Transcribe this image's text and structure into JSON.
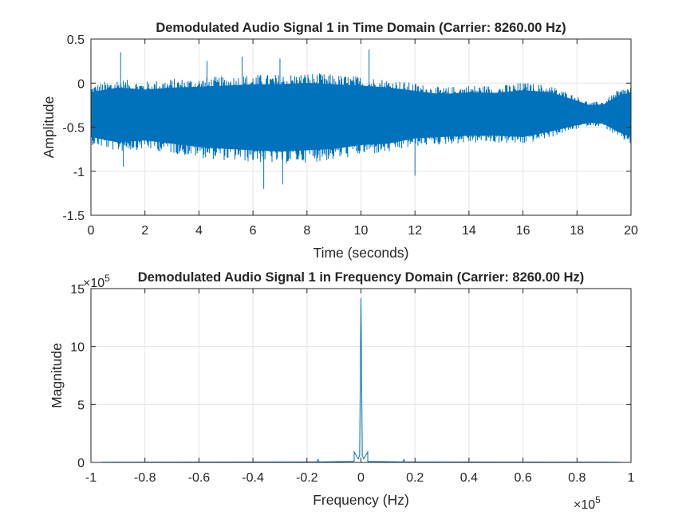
{
  "chart_data": [
    {
      "type": "line",
      "title": "Demodulated Audio Signal 1 in Time Domain (Carrier: 8260.00 Hz)",
      "xlabel": "Time (seconds)",
      "ylabel": "Amplitude",
      "xlim": [
        0,
        20
      ],
      "ylim": [
        -1.5,
        0.5
      ],
      "xticks": [
        0,
        2,
        4,
        6,
        8,
        10,
        12,
        14,
        16,
        18,
        20
      ],
      "yticks": [
        -1.5,
        -1,
        -0.5,
        0,
        0.5
      ],
      "xtick_labels": [
        "0",
        "2",
        "4",
        "6",
        "8",
        "10",
        "12",
        "14",
        "16",
        "18",
        "20"
      ],
      "ytick_labels": [
        "-1.5",
        "-1",
        "-0.5",
        "0",
        "0.5"
      ],
      "grid": true,
      "color": "#0072bd",
      "series": [
        {
          "center": -0.35,
          "envelope": {
            "t": [
              0,
              1,
              2,
              3,
              4,
              5,
              6,
              7,
              8,
              9,
              10,
              11,
              12,
              13,
              14,
              15,
              16,
              17,
              18,
              18.5,
              19,
              19.5,
              20
            ],
            "upper": [
              -0.02,
              0.05,
              0.02,
              0.05,
              0.06,
              0.08,
              0.1,
              0.1,
              0.12,
              0.1,
              0.08,
              0.05,
              0.0,
              -0.05,
              -0.02,
              -0.03,
              0.01,
              -0.02,
              -0.15,
              -0.22,
              -0.2,
              -0.08,
              -0.02
            ],
            "lower": [
              -0.7,
              -0.78,
              -0.75,
              -0.8,
              -0.85,
              -0.88,
              -0.9,
              -0.92,
              -0.9,
              -0.88,
              -0.82,
              -0.8,
              -0.72,
              -0.7,
              -0.68,
              -0.68,
              -0.7,
              -0.62,
              -0.52,
              -0.48,
              -0.5,
              -0.62,
              -0.7
            ]
          },
          "peaks": [
            {
              "t": 1.1,
              "y": 0.35
            },
            {
              "t": 1.2,
              "y": -0.95
            },
            {
              "t": 4.3,
              "y": 0.25
            },
            {
              "t": 5.6,
              "y": 0.3
            },
            {
              "t": 6.4,
              "y": -1.2
            },
            {
              "t": 7.0,
              "y": 0.28
            },
            {
              "t": 7.1,
              "y": -1.15
            },
            {
              "t": 10.3,
              "y": 0.38
            },
            {
              "t": 12.0,
              "y": -1.05
            }
          ]
        }
      ]
    },
    {
      "type": "line",
      "title": "Demodulated Audio Signal 1 in Frequency Domain (Carrier: 8260.00 Hz)",
      "xlabel": "Frequency (Hz)",
      "ylabel": "Magnitude",
      "xlim": [
        -1,
        1
      ],
      "ylim": [
        0,
        15
      ],
      "xticks": [
        -1,
        -0.8,
        -0.6,
        -0.4,
        -0.2,
        0,
        0.2,
        0.4,
        0.6,
        0.8,
        1
      ],
      "yticks": [
        0,
        5,
        10,
        15
      ],
      "xtick_labels": [
        "-1",
        "-0.8",
        "-0.6",
        "-0.4",
        "-0.2",
        "0",
        "0.2",
        "0.4",
        "0.6",
        "0.8",
        "1"
      ],
      "ytick_labels": [
        "0",
        "5",
        "10",
        "15"
      ],
      "x_exponent_label": "×10",
      "x_exponent": "5",
      "y_exponent_label": "×10",
      "y_exponent": "5",
      "grid": true,
      "color": "#0072bd",
      "series": [
        {
          "x": [
            -0.96,
            -0.2,
            -0.16,
            -0.16,
            -0.155,
            -0.03,
            -0.025,
            -0.025,
            -0.01,
            -0.005,
            0,
            0.005,
            0.01,
            0.025,
            0.025,
            0.03,
            0.155,
            0.16,
            0.16,
            0.2,
            0.96
          ],
          "y": [
            0.02,
            0.04,
            0.04,
            0.3,
            0.04,
            0.08,
            0.08,
            0.9,
            0.3,
            0.6,
            14.2,
            0.6,
            0.3,
            0.9,
            0.08,
            0.08,
            0.04,
            0.3,
            0.04,
            0.04,
            0.02
          ]
        }
      ]
    }
  ]
}
